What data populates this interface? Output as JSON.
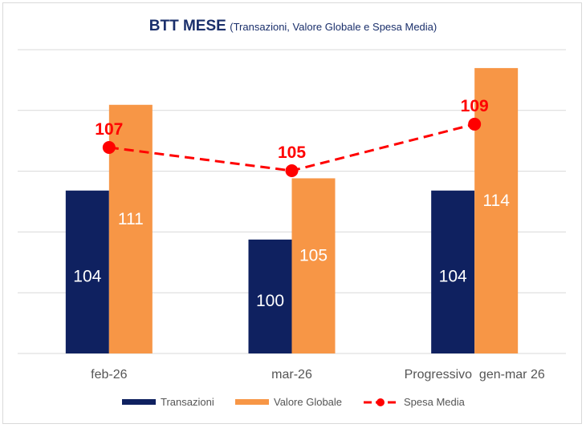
{
  "chart_data": {
    "type": "bar",
    "title": "BTT MESE",
    "subtitle": "(Transazioni, Valore Globale e Spesa Media)",
    "categories": [
      "feb-26",
      "mar-26",
      "Progressivo  gen-mar 26"
    ],
    "series": [
      {
        "name": "Transazioni",
        "type": "bar",
        "color": "#0f2160",
        "values": [
          104,
          100,
          104
        ],
        "label_color": "#ffffff"
      },
      {
        "name": "Valore Globale",
        "type": "bar",
        "color": "#f79646",
        "values": [
          111,
          105,
          114
        ],
        "label_color": "#ffffff"
      },
      {
        "name": "Spesa Media",
        "type": "line",
        "color": "#ff0000",
        "dashed": true,
        "secondary_axis": true,
        "values": [
          107,
          105,
          109
        ],
        "label_color": "#ff0000"
      }
    ],
    "ylim": [
      90.7,
      115.5
    ],
    "ylim_secondary": [
      89.3,
      115.4
    ],
    "gridlines": 6,
    "grid": true,
    "xlabel": "",
    "ylabel": "",
    "legend_position": "bottom"
  }
}
